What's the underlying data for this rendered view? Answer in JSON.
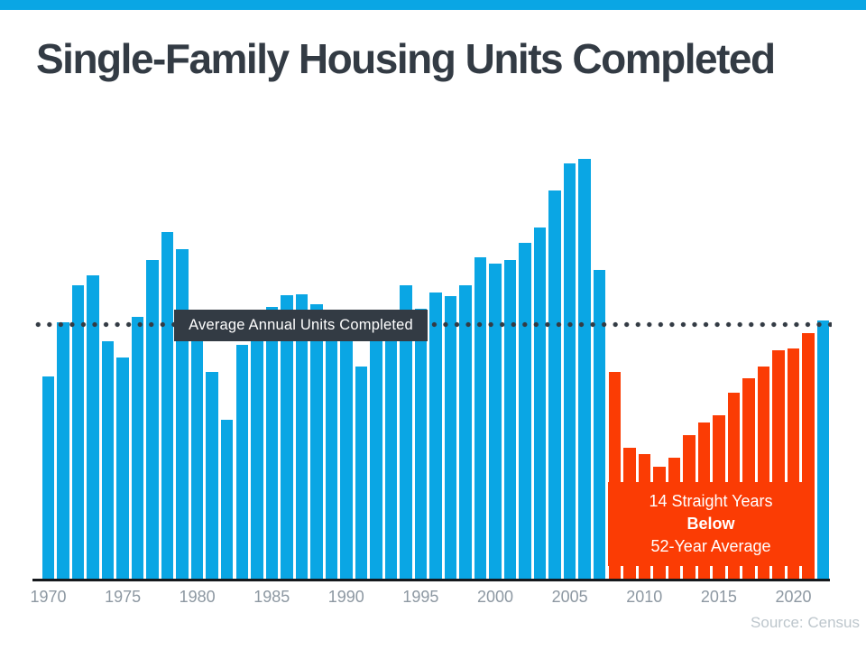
{
  "title": "Single-Family Housing Units Completed",
  "source": "Source: Census",
  "chart_data": {
    "type": "bar",
    "title": "Single-Family Housing Units Completed",
    "xlabel": "",
    "ylabel": "",
    "grid": "off",
    "legend": "none",
    "units": "thousands of single-family housing units completed per year (no y-axis shown; values estimated from bar heights)",
    "years": [
      1970,
      1971,
      1972,
      1973,
      1974,
      1975,
      1976,
      1977,
      1978,
      1979,
      1980,
      1981,
      1982,
      1983,
      1984,
      1985,
      1986,
      1987,
      1988,
      1989,
      1990,
      1991,
      1992,
      1993,
      1994,
      1995,
      1996,
      1997,
      1998,
      1999,
      2000,
      2001,
      2002,
      2003,
      2004,
      2005,
      2006,
      2007,
      2008,
      2009,
      2010,
      2011,
      2012,
      2013,
      2014,
      2015,
      2016,
      2017,
      2018,
      2019,
      2020,
      2021,
      2022
    ],
    "values": [
      802,
      1014,
      1160,
      1197,
      940,
      875,
      1034,
      1258,
      1369,
      1301,
      957,
      818,
      632,
      924,
      1025,
      1072,
      1120,
      1123,
      1085,
      1026,
      966,
      838,
      964,
      1039,
      1160,
      1066,
      1129,
      1116,
      1160,
      1270,
      1242,
      1256,
      1325,
      1386,
      1532,
      1636,
      1654,
      1218,
      819,
      520,
      496,
      447,
      483,
      569,
      620,
      648,
      738,
      795,
      840,
      903,
      912,
      971,
      1019
    ],
    "x_tick_years": [
      1970,
      1975,
      1980,
      1985,
      1990,
      1995,
      2000,
      2005,
      2010,
      2015,
      2020
    ],
    "average_line": {
      "label": "Average Annual Units Completed",
      "value": 1006
    },
    "annotation": {
      "lines": [
        "14 Straight Years",
        "Below",
        "52-Year Average"
      ],
      "from_year": 2008,
      "to_year": 2021
    },
    "colors": {
      "bars": "#0aa6e4",
      "below_average": "#fb3c04",
      "average_line": "#333b44",
      "axis": "#15181c",
      "tick_labels": "#8d98a2",
      "title_text": "#333b44",
      "annotation_text": "#ffffff"
    }
  }
}
